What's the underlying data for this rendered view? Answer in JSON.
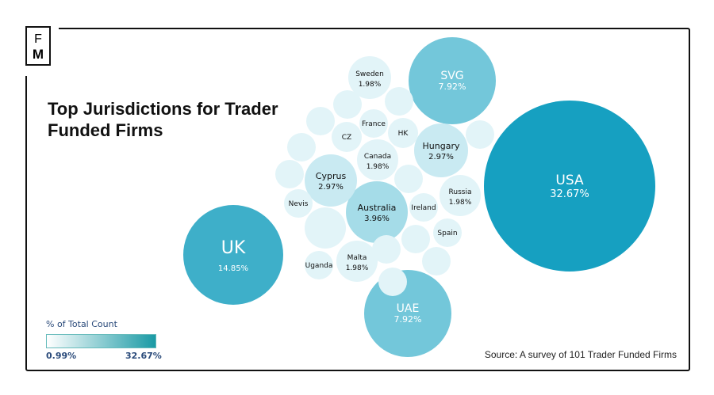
{
  "logo": {
    "top": "F",
    "bottom": "M"
  },
  "title": "Top Jurisdictions for Trader Funded Firms",
  "source": "Source: A survey of 101 Trader Funded Firms",
  "legend": {
    "title": "% of Total Count",
    "min": "0.99%",
    "max": "32.67%",
    "color_min": "#ffffff",
    "color_max": "#1a9aa5"
  },
  "chart_data": {
    "type": "bubble",
    "title": "Top Jurisdictions for Trader Funded Firms",
    "unit": "% of Total Count",
    "series": [
      {
        "name": "USA",
        "value": 32.67,
        "label": "32.67%"
      },
      {
        "name": "UK",
        "value": 14.85,
        "label": "14.85%"
      },
      {
        "name": "SVG",
        "value": 7.92,
        "label": "7.92%"
      },
      {
        "name": "UAE",
        "value": 7.92,
        "label": "7.92%"
      },
      {
        "name": "Australia",
        "value": 3.96,
        "label": "3.96%"
      },
      {
        "name": "Hungary",
        "value": 2.97,
        "label": "2.97%"
      },
      {
        "name": "Cyprus",
        "value": 2.97,
        "label": "2.97%"
      },
      {
        "name": "Sweden",
        "value": 1.98,
        "label": "1.98%"
      },
      {
        "name": "Canada",
        "value": 1.98,
        "label": "1.98%"
      },
      {
        "name": "Russia",
        "value": 1.98,
        "label": "1.98%"
      },
      {
        "name": "Malta",
        "value": 1.98,
        "label": "1.98%"
      },
      {
        "name": "France",
        "value": 0.99,
        "label": ""
      },
      {
        "name": "HK",
        "value": 0.99,
        "label": ""
      },
      {
        "name": "CZ",
        "value": 0.99,
        "label": ""
      },
      {
        "name": "Nevis",
        "value": 0.99,
        "label": ""
      },
      {
        "name": "Ireland",
        "value": 0.99,
        "label": ""
      },
      {
        "name": "Spain",
        "value": 0.99,
        "label": ""
      },
      {
        "name": "Uganda",
        "value": 0.99,
        "label": ""
      },
      {
        "name": "",
        "value": 0.99,
        "label": ""
      },
      {
        "name": "",
        "value": 0.99,
        "label": ""
      },
      {
        "name": "",
        "value": 0.99,
        "label": ""
      },
      {
        "name": "",
        "value": 0.99,
        "label": ""
      },
      {
        "name": "",
        "value": 0.99,
        "label": ""
      },
      {
        "name": "",
        "value": 0.99,
        "label": ""
      },
      {
        "name": "",
        "value": 0.99,
        "label": ""
      },
      {
        "name": "",
        "value": 1.98,
        "label": ""
      },
      {
        "name": "",
        "value": 0.99,
        "label": ""
      },
      {
        "name": "",
        "value": 0.99,
        "label": ""
      },
      {
        "name": "",
        "value": 0.99,
        "label": ""
      },
      {
        "name": "",
        "value": 0.99,
        "label": ""
      }
    ]
  }
}
